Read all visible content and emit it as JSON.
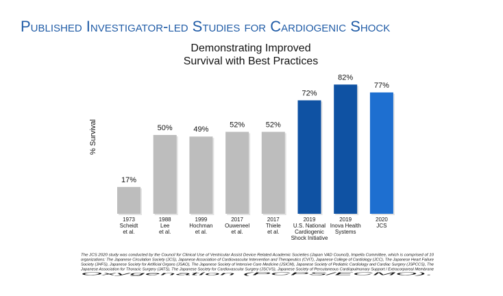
{
  "chart_data": {
    "type": "bar",
    "title": "Published Investigator-led Studies for Cardiogenic Shock",
    "subtitle": [
      "Demonstrating Improved",
      "Survival with Best Practices"
    ],
    "y_label": "% Survival",
    "categories": [
      [
        "1973",
        "Scheidt",
        "et al."
      ],
      [
        "1988",
        "Lee",
        "et al."
      ],
      [
        "1999",
        "Hochman",
        "et al."
      ],
      [
        "2017",
        "Ouweneel",
        "et al."
      ],
      [
        "2017",
        "Thiele",
        "et al."
      ],
      [
        "2019",
        "U.S. National",
        "Cardiogenic",
        "Shock Initiative"
      ],
      [
        "2019",
        "Inova Health",
        "Systems"
      ],
      [
        "2020",
        "JCS"
      ]
    ],
    "values": [
      17,
      50,
      49,
      52,
      52,
      72,
      82,
      77
    ],
    "value_labels": [
      "17%",
      "50%",
      "49%",
      "52%",
      "52%",
      "72%",
      "82%",
      "77%"
    ],
    "colors": [
      "#bdbdbd",
      "#bdbdbd",
      "#bdbdbd",
      "#bdbdbd",
      "#bdbdbd",
      "#0f52a3",
      "#0f52a3",
      "#1e6fd0"
    ],
    "footnote": [
      "The JCS 2020 study was conducted by the Council for Clinical Use of Ventricular Assist Device Related Academic Societies (Japan VAD Council), Impella Committee, which is comprised of 10",
      "organizations: The Japanese Circulation Society (JCS), Japanese Association of Cardiovascular Intervention and Therapeutics (CVIT), Japanese College of Cardiology (JCC), The Japanese Heart Failure",
      "Society (JHFS), Japanese Society for Artificial Organs (JSAO), The Japanese Society of Intensive Care Medicine (JSICM), Japanese Society of Pediatric Cardiology and Cardiac Surgery (JSPCCS), The",
      "Japanese Association for Thoracic Surgery (JATS), The Japanese Society for Cardiovascular Surgery (JSCVS), Japanese Society of Percutaneous Cardiopulmonary Support / Extracorporeal Membrane",
      "Oxygenation (PCPS/ECMO)."
    ]
  }
}
